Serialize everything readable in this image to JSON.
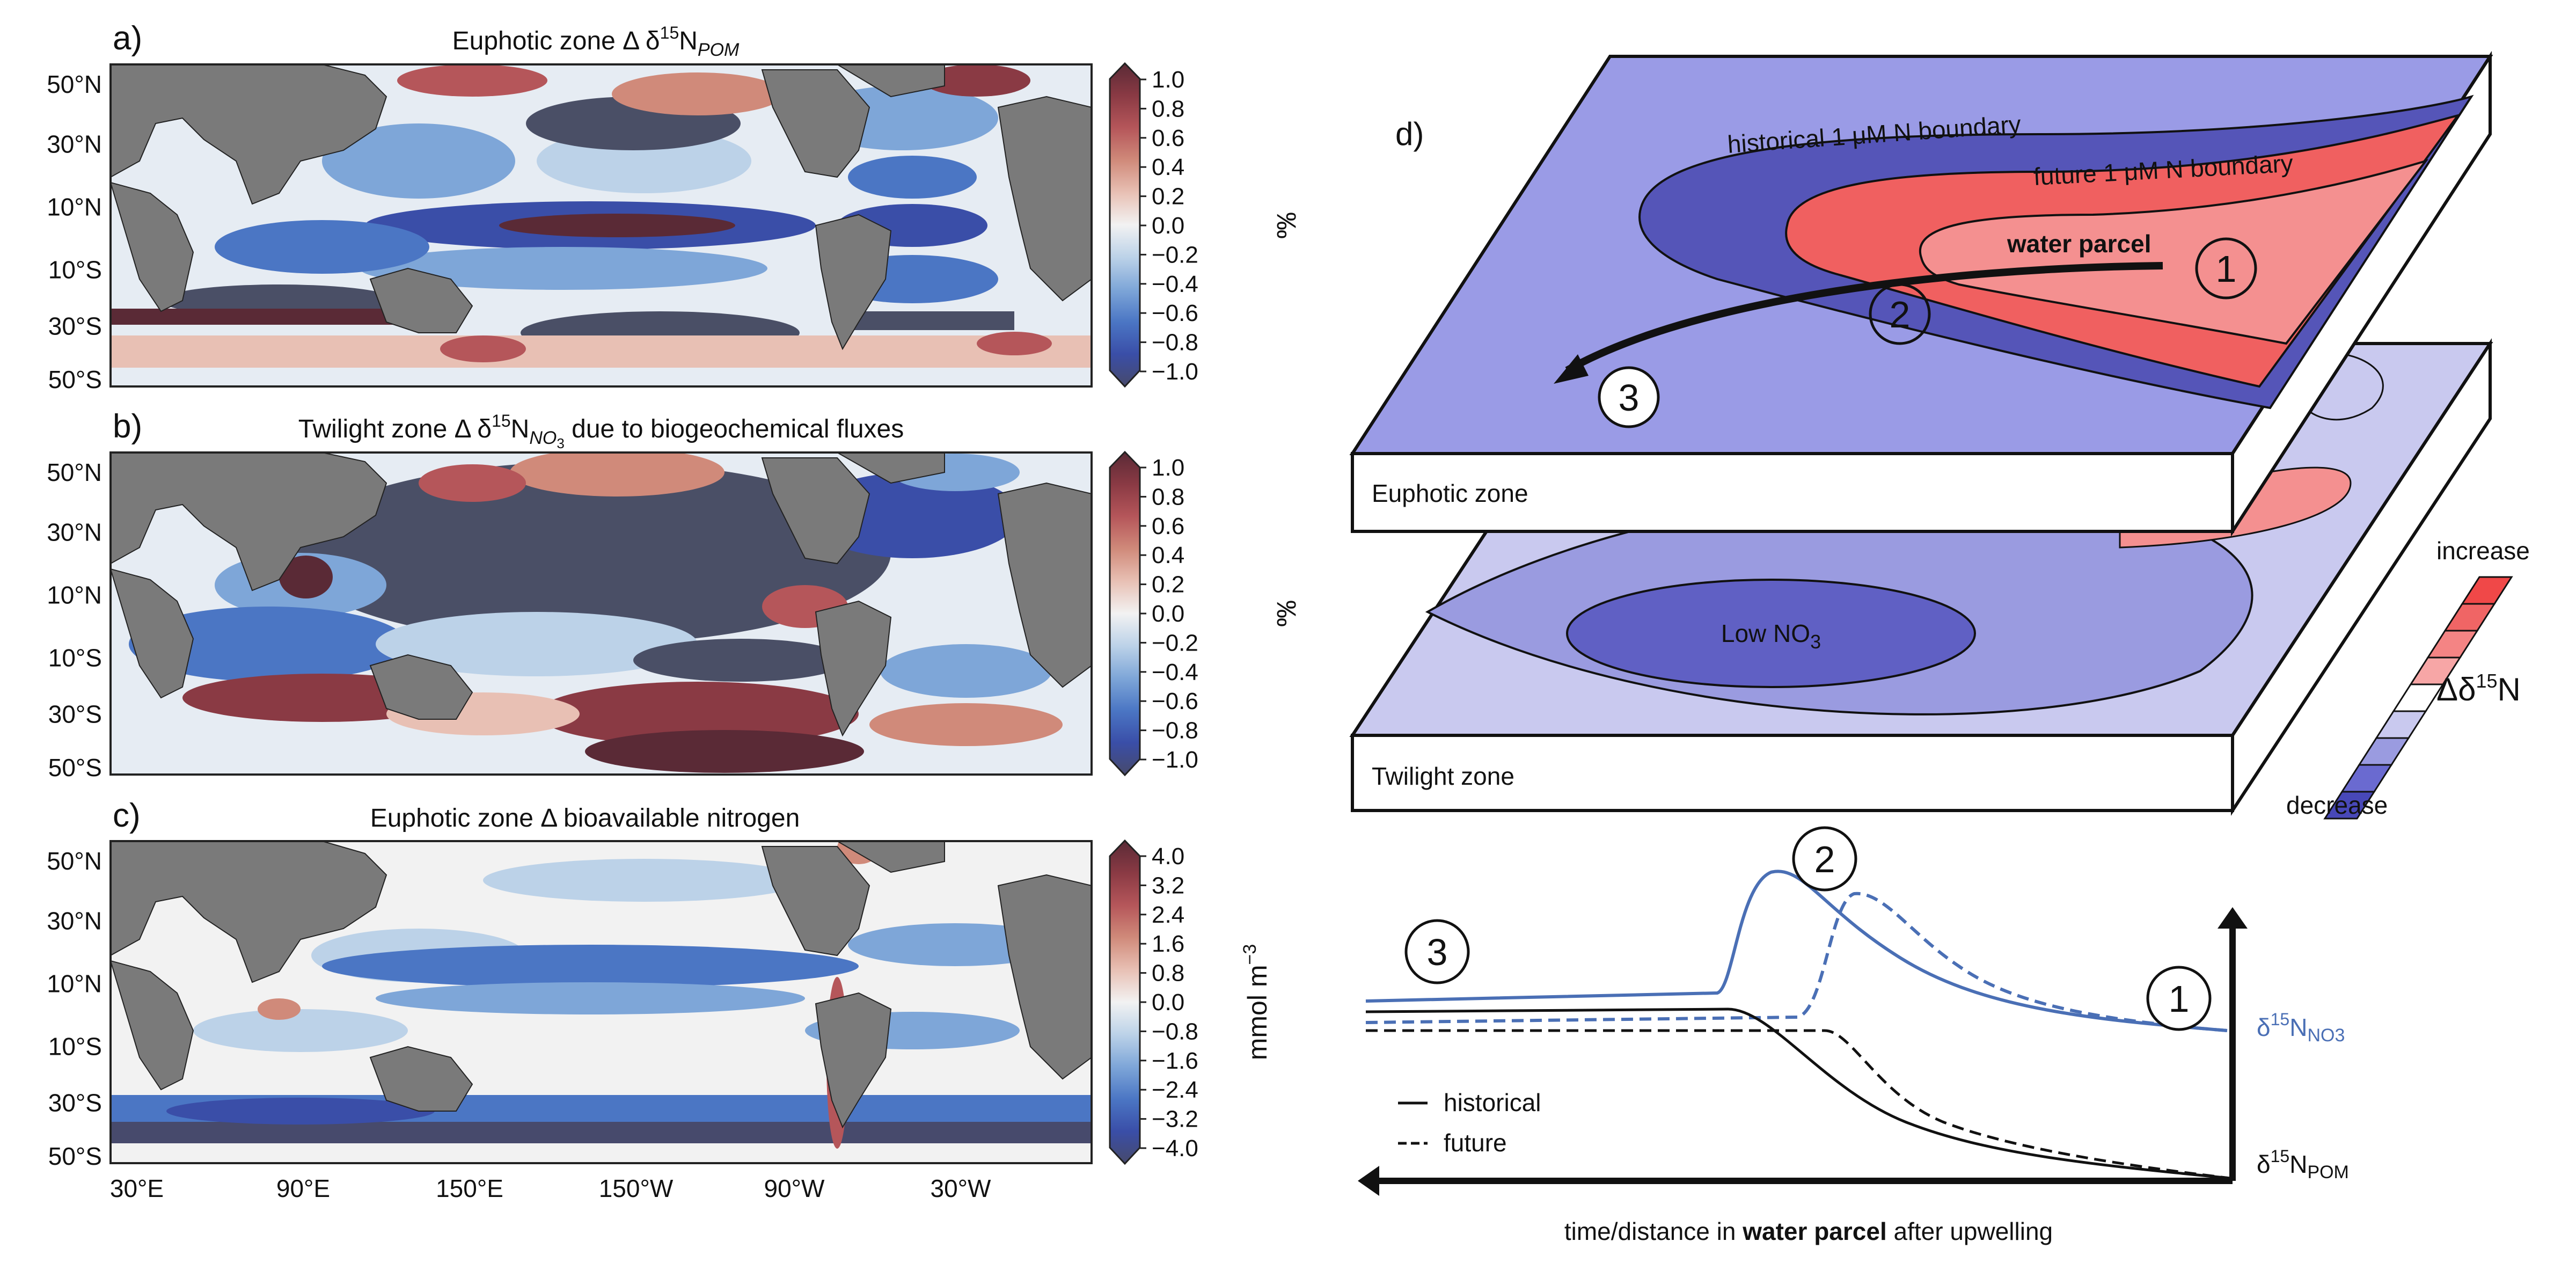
{
  "panels": {
    "a": {
      "label": "a)",
      "title_main": "Euphotic zone Δ δ",
      "title_sup": "15",
      "title_n": "N",
      "title_sub": "POM",
      "colorbar_ticks": [
        "1.0",
        "0.8",
        "0.6",
        "0.4",
        "0.2",
        "0.0",
        "−0.2",
        "−0.4",
        "−0.6",
        "−0.8",
        "−1.0"
      ],
      "unit": "‰"
    },
    "b": {
      "label": "b)",
      "title_main": "Twilight zone Δ δ",
      "title_sup": "15",
      "title_n": "N",
      "title_sub": "NO",
      "title_sub2": "3",
      "title_rest": " due to biogeochemical fluxes",
      "colorbar_ticks": [
        "1.0",
        "0.8",
        "0.6",
        "0.4",
        "0.2",
        "0.0",
        "−0.2",
        "−0.4",
        "−0.6",
        "−0.8",
        "−1.0"
      ],
      "unit": "‰"
    },
    "c": {
      "label": "c)",
      "title": "Euphotic zone Δ bioavailable nitrogen",
      "colorbar_ticks": [
        "4.0",
        "3.2",
        "2.4",
        "1.6",
        "0.8",
        "0.0",
        "−0.8",
        "−1.6",
        "−2.4",
        "−3.2",
        "−4.0"
      ],
      "unit": "mmol m",
      "unit_sup": "−3"
    }
  },
  "lat_ticks": [
    "50°N",
    "30°N",
    "10°N",
    "10°S",
    "30°S",
    "50°S"
  ],
  "lon_ticks": [
    "30°E",
    "90°E",
    "150°E",
    "150°W",
    "90°W",
    "30°W"
  ],
  "diagram": {
    "label": "d)",
    "historical_boundary": "historical 1 μM N boundary",
    "future_boundary": "future 1 μM N boundary",
    "water_parcel": "water parcel",
    "euphotic": "Euphotic zone",
    "twilight": "Twilight zone",
    "low_no3": "Low NO",
    "low_no3_sub": "3",
    "increase": "increase",
    "decrease": "decrease",
    "delta_label": "Δδ",
    "delta_sup": "15",
    "delta_n": "N",
    "steps": [
      "1",
      "2",
      "3"
    ]
  },
  "profile": {
    "legend_historical": "historical",
    "legend_future": "future",
    "no3_label": "δ",
    "no3_sup": "15",
    "no3_n": "N",
    "no3_sub": "NO3",
    "pom_label": "δ",
    "pom_sup": "15",
    "pom_n": "N",
    "pom_sub": "POM",
    "xlabel_pre": "time/distance in ",
    "xlabel_bold": "water parcel",
    "xlabel_post": " after upwelling"
  },
  "colors": {
    "no3_line": "#4a6fb5",
    "pom_line": "#111111",
    "surface_base": "#9a9be6",
    "historical_region": "#5555b8",
    "future_region": "#f06060",
    "parcel_region": "#f49090",
    "twilight_light": "#c9c9ef",
    "twilight_mid": "#9a9be0",
    "low_no3": "#6060c4",
    "land": "#7a7a7a",
    "dark_pos": "#5a2a32",
    "dark_neg": "#4a4f66"
  }
}
